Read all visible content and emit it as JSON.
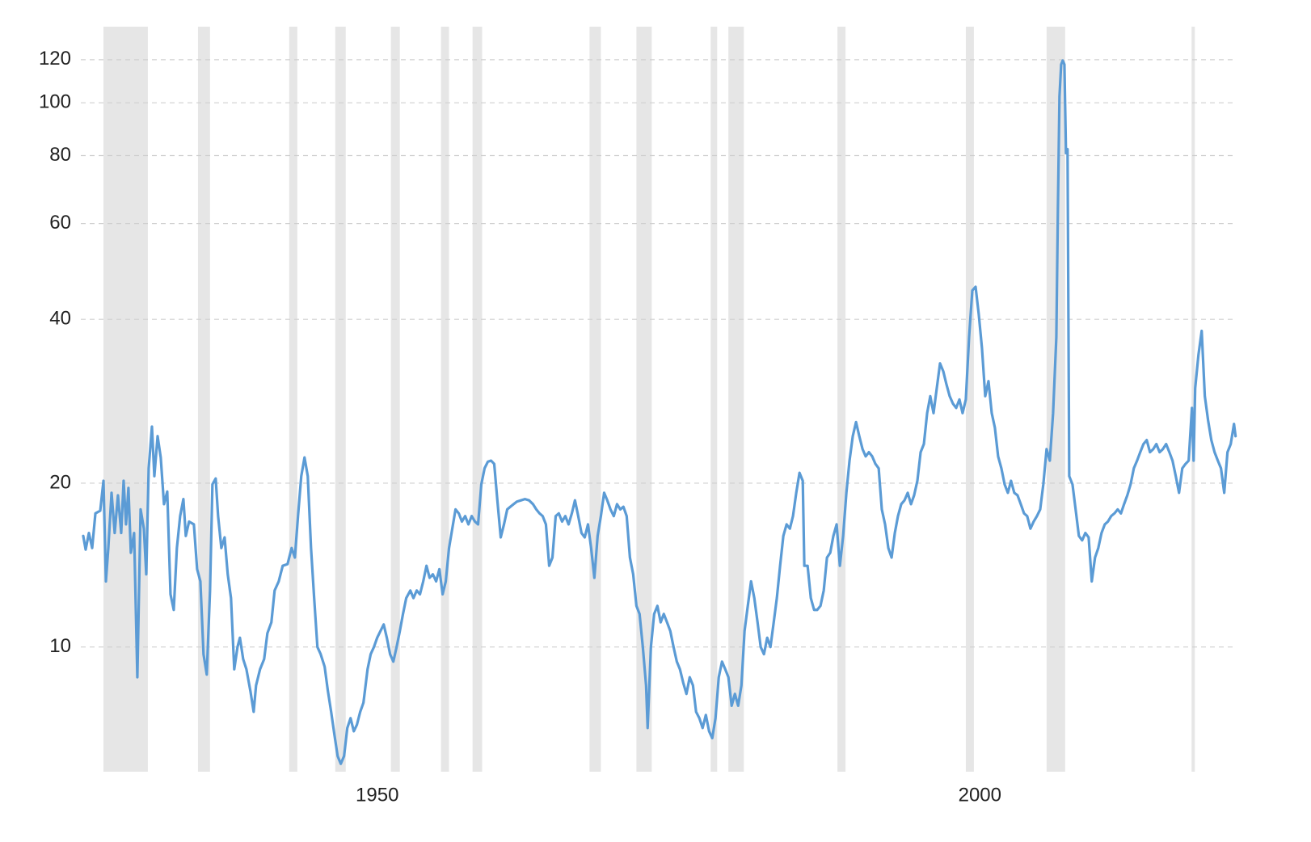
{
  "chart_data": {
    "type": "line",
    "log_scale": true,
    "grid": true,
    "color": "#5b9bd5",
    "recession_color": "#e6e6e6",
    "xlim": [
      1927.8,
      2023.7
    ],
    "ylim": [
      5.9,
      138
    ],
    "xticks": [
      1950,
      2000
    ],
    "yticks": [
      10,
      20,
      40,
      60,
      80,
      100,
      120
    ],
    "recessions": [
      [
        1929.68,
        1933.36
      ],
      [
        1937.52,
        1938.52
      ],
      [
        1945.09,
        1945.76
      ],
      [
        1948.91,
        1949.78
      ],
      [
        1953.53,
        1954.27
      ],
      [
        1957.68,
        1958.35
      ],
      [
        1960.3,
        1961.1
      ],
      [
        1970.01,
        1970.95
      ],
      [
        1973.9,
        1975.17
      ],
      [
        1980.06,
        1980.6
      ],
      [
        1981.53,
        1982.81
      ],
      [
        1990.58,
        1991.25
      ],
      [
        2001.23,
        2001.9
      ],
      [
        2007.93,
        2009.47
      ],
      [
        2019.96,
        2020.23
      ]
    ],
    "x": [
      1928.0,
      1928.2,
      1928.47,
      1928.74,
      1929.01,
      1929.41,
      1929.68,
      1929.88,
      1930.08,
      1930.35,
      1930.61,
      1930.88,
      1931.15,
      1931.35,
      1931.55,
      1931.75,
      1931.95,
      1932.22,
      1932.49,
      1932.76,
      1933.03,
      1933.23,
      1933.43,
      1933.7,
      1933.9,
      1934.17,
      1934.43,
      1934.7,
      1934.97,
      1935.24,
      1935.51,
      1935.77,
      1936.04,
      1936.31,
      1936.51,
      1936.78,
      1937.18,
      1937.45,
      1937.72,
      1937.98,
      1938.25,
      1938.52,
      1938.72,
      1938.99,
      1939.19,
      1939.46,
      1939.73,
      1939.99,
      1940.26,
      1940.53,
      1940.8,
      1941.0,
      1941.27,
      1941.54,
      1941.87,
      1942.14,
      1942.34,
      1942.67,
      1943.01,
      1943.28,
      1943.61,
      1943.88,
      1944.22,
      1944.55,
      1944.95,
      1945.29,
      1945.56,
      1945.82,
      1946.09,
      1946.36,
      1946.63,
      1946.9,
      1947.16,
      1947.43,
      1947.7,
      1948.03,
      1948.3,
      1948.57,
      1948.84,
      1949.11,
      1949.37,
      1949.64,
      1949.91,
      1950.18,
      1950.45,
      1950.71,
      1950.98,
      1951.25,
      1951.59,
      1951.85,
      1952.12,
      1952.39,
      1952.66,
      1952.93,
      1953.19,
      1953.46,
      1953.73,
      1954.0,
      1954.27,
      1954.53,
      1954.8,
      1955.14,
      1955.4,
      1955.67,
      1955.94,
      1956.21,
      1956.48,
      1956.74,
      1957.01,
      1957.28,
      1957.55,
      1957.82,
      1958.08,
      1958.35,
      1958.62,
      1958.89,
      1959.16,
      1959.42,
      1959.69,
      1959.96,
      1960.23,
      1960.5,
      1960.76,
      1961.03,
      1961.3,
      1961.57,
      1961.84,
      1962.1,
      1962.37,
      1962.64,
      1962.91,
      1963.18,
      1963.44,
      1963.71,
      1963.98,
      1964.32,
      1964.65,
      1964.99,
      1965.32,
      1965.59,
      1965.86,
      1966.12,
      1966.39,
      1966.66,
      1966.93,
      1967.2,
      1967.46,
      1967.73,
      1968.0,
      1968.27,
      1968.54,
      1968.8,
      1969.07,
      1969.34,
      1969.61,
      1969.88,
      1970.14,
      1970.41,
      1970.68,
      1970.95,
      1971.22,
      1971.48,
      1971.75,
      1972.02,
      1972.29,
      1972.56,
      1972.82,
      1973.09,
      1973.36,
      1973.63,
      1973.9,
      1974.16,
      1974.43,
      1974.7,
      1974.83,
      1975.1,
      1975.37,
      1975.64,
      1975.91,
      1976.17,
      1976.44,
      1976.71,
      1976.98,
      1977.25,
      1977.51,
      1977.78,
      1978.05,
      1978.32,
      1978.59,
      1978.85,
      1979.12,
      1979.39,
      1979.66,
      1979.93,
      1980.19,
      1980.46,
      1980.73,
      1981.0,
      1981.27,
      1981.53,
      1981.8,
      1982.07,
      1982.34,
      1982.61,
      1982.87,
      1983.14,
      1983.41,
      1983.68,
      1983.95,
      1984.21,
      1984.48,
      1984.75,
      1985.02,
      1985.29,
      1985.55,
      1985.82,
      1986.09,
      1986.36,
      1986.63,
      1986.89,
      1987.16,
      1987.43,
      1987.7,
      1987.83,
      1988.1,
      1988.37,
      1988.64,
      1988.9,
      1989.17,
      1989.44,
      1989.71,
      1989.98,
      1990.24,
      1990.51,
      1990.78,
      1991.05,
      1991.32,
      1991.58,
      1991.85,
      1992.12,
      1992.39,
      1992.66,
      1992.92,
      1993.19,
      1993.46,
      1993.73,
      1994.0,
      1994.26,
      1994.53,
      1994.8,
      1995.07,
      1995.34,
      1995.6,
      1995.87,
      1996.14,
      1996.41,
      1996.68,
      1996.94,
      1997.21,
      1997.48,
      1997.75,
      1998.02,
      1998.28,
      1998.55,
      1998.82,
      1999.09,
      1999.36,
      1999.62,
      1999.89,
      2000.16,
      2000.43,
      2000.7,
      2000.96,
      2001.23,
      2001.5,
      2001.77,
      2002.04,
      2002.3,
      2002.57,
      2002.84,
      2003.11,
      2003.38,
      2003.64,
      2003.91,
      2004.18,
      2004.45,
      2004.72,
      2004.98,
      2005.25,
      2005.52,
      2005.79,
      2006.06,
      2006.32,
      2006.59,
      2006.86,
      2007.13,
      2007.4,
      2007.66,
      2007.93,
      2008.2,
      2008.47,
      2008.74,
      2008.87,
      2009.0,
      2009.14,
      2009.27,
      2009.41,
      2009.54,
      2009.67,
      2009.81,
      2010.08,
      2010.34,
      2010.61,
      2010.88,
      2011.15,
      2011.42,
      2011.68,
      2011.95,
      2012.22,
      2012.49,
      2012.76,
      2013.02,
      2013.29,
      2013.56,
      2013.83,
      2014.1,
      2014.36,
      2014.63,
      2014.9,
      2015.17,
      2015.44,
      2015.7,
      2015.97,
      2016.24,
      2016.51,
      2016.78,
      2017.04,
      2017.31,
      2017.58,
      2017.85,
      2018.12,
      2018.38,
      2018.65,
      2018.92,
      2019.19,
      2019.46,
      2019.72,
      2019.99,
      2020.13,
      2020.26,
      2020.53,
      2020.8,
      2021.06,
      2021.33,
      2021.6,
      2021.87,
      2022.14,
      2022.4,
      2022.67,
      2022.94,
      2023.21,
      2023.48,
      2023.61
    ],
    "values": [
      16.0,
      15.1,
      16.2,
      15.2,
      17.6,
      17.8,
      20.2,
      13.2,
      15.2,
      19.2,
      16.2,
      19.0,
      16.2,
      20.2,
      16.8,
      19.6,
      14.9,
      16.2,
      8.8,
      17.9,
      16.5,
      13.6,
      21.3,
      25.4,
      20.6,
      24.4,
      22.3,
      18.3,
      19.3,
      12.5,
      11.7,
      15.2,
      17.4,
      18.7,
      16.0,
      17.0,
      16.8,
      13.9,
      13.2,
      9.7,
      8.9,
      12.7,
      19.9,
      20.4,
      17.4,
      15.2,
      15.9,
      13.6,
      12.3,
      9.1,
      10.0,
      10.4,
      9.5,
      9.1,
      8.3,
      7.6,
      8.5,
      9.1,
      9.5,
      10.6,
      11.1,
      12.7,
      13.2,
      14.1,
      14.2,
      15.2,
      14.6,
      17.4,
      20.6,
      22.3,
      20.6,
      15.2,
      12.3,
      10.0,
      9.7,
      9.2,
      8.3,
      7.6,
      6.9,
      6.3,
      6.1,
      6.3,
      7.1,
      7.4,
      7.0,
      7.2,
      7.6,
      7.9,
      9.1,
      9.7,
      10.0,
      10.4,
      10.7,
      11.0,
      10.4,
      9.7,
      9.4,
      10.0,
      10.7,
      11.5,
      12.3,
      12.7,
      12.3,
      12.7,
      12.5,
      13.2,
      14.1,
      13.4,
      13.6,
      13.2,
      13.9,
      12.5,
      13.2,
      15.2,
      16.5,
      17.9,
      17.6,
      17.0,
      17.4,
      16.8,
      17.4,
      17.0,
      16.8,
      19.9,
      21.3,
      21.9,
      22.0,
      21.7,
      18.5,
      15.9,
      16.8,
      17.9,
      18.1,
      18.3,
      18.5,
      18.6,
      18.7,
      18.6,
      18.3,
      17.9,
      17.6,
      17.4,
      16.8,
      14.1,
      14.6,
      17.4,
      17.6,
      17.0,
      17.4,
      16.8,
      17.6,
      18.6,
      17.4,
      16.2,
      15.9,
      16.8,
      15.2,
      13.4,
      16.0,
      17.4,
      19.2,
      18.6,
      17.9,
      17.4,
      18.3,
      17.9,
      18.1,
      17.4,
      14.6,
      13.6,
      11.9,
      11.5,
      10.0,
      8.5,
      7.1,
      10.0,
      11.5,
      11.9,
      11.1,
      11.5,
      11.1,
      10.7,
      10.0,
      9.4,
      9.1,
      8.6,
      8.2,
      8.8,
      8.5,
      7.6,
      7.4,
      7.1,
      7.5,
      7.0,
      6.8,
      7.4,
      8.8,
      9.4,
      9.1,
      8.8,
      7.8,
      8.2,
      7.8,
      8.5,
      10.7,
      11.9,
      13.2,
      12.3,
      11.1,
      10.0,
      9.7,
      10.4,
      10.0,
      11.1,
      12.3,
      14.1,
      16.0,
      16.8,
      16.5,
      17.4,
      19.2,
      20.9,
      20.2,
      14.1,
      14.1,
      12.3,
      11.7,
      11.7,
      11.9,
      12.7,
      14.6,
      14.9,
      16.0,
      16.8,
      14.1,
      16.0,
      19.2,
      22.0,
      24.4,
      25.9,
      24.4,
      23.1,
      22.4,
      22.8,
      22.4,
      21.7,
      21.3,
      17.9,
      16.8,
      15.2,
      14.6,
      16.2,
      17.4,
      18.3,
      18.6,
      19.2,
      18.3,
      19.0,
      20.2,
      22.8,
      23.6,
      26.9,
      28.9,
      26.9,
      29.9,
      33.2,
      32.1,
      30.4,
      28.9,
      28.0,
      27.5,
      28.5,
      26.9,
      28.5,
      37.1,
      45.2,
      45.9,
      40.9,
      35.4,
      28.9,
      30.8,
      26.9,
      25.3,
      22.4,
      21.3,
      19.9,
      19.2,
      20.2,
      19.2,
      19.0,
      18.3,
      17.6,
      17.4,
      16.5,
      17.0,
      17.4,
      17.9,
      19.9,
      23.1,
      22.0,
      26.9,
      37.1,
      63.8,
      102.6,
      117.6,
      119.6,
      117.6,
      80.8,
      82.2,
      20.6,
      19.9,
      17.9,
      16.0,
      15.7,
      16.2,
      15.9,
      13.2,
      14.6,
      15.2,
      16.2,
      16.8,
      17.0,
      17.4,
      17.6,
      17.9,
      17.6,
      18.3,
      19.0,
      19.9,
      21.3,
      22.0,
      22.8,
      23.6,
      24.0,
      22.8,
      23.1,
      23.6,
      22.8,
      23.1,
      23.6,
      22.8,
      22.0,
      20.6,
      19.2,
      21.3,
      21.7,
      22.0,
      27.5,
      22.0,
      29.9,
      34.4,
      38.1,
      28.9,
      26.1,
      24.0,
      22.8,
      22.0,
      21.3,
      19.2,
      22.8,
      23.6,
      25.7,
      24.4
    ]
  }
}
